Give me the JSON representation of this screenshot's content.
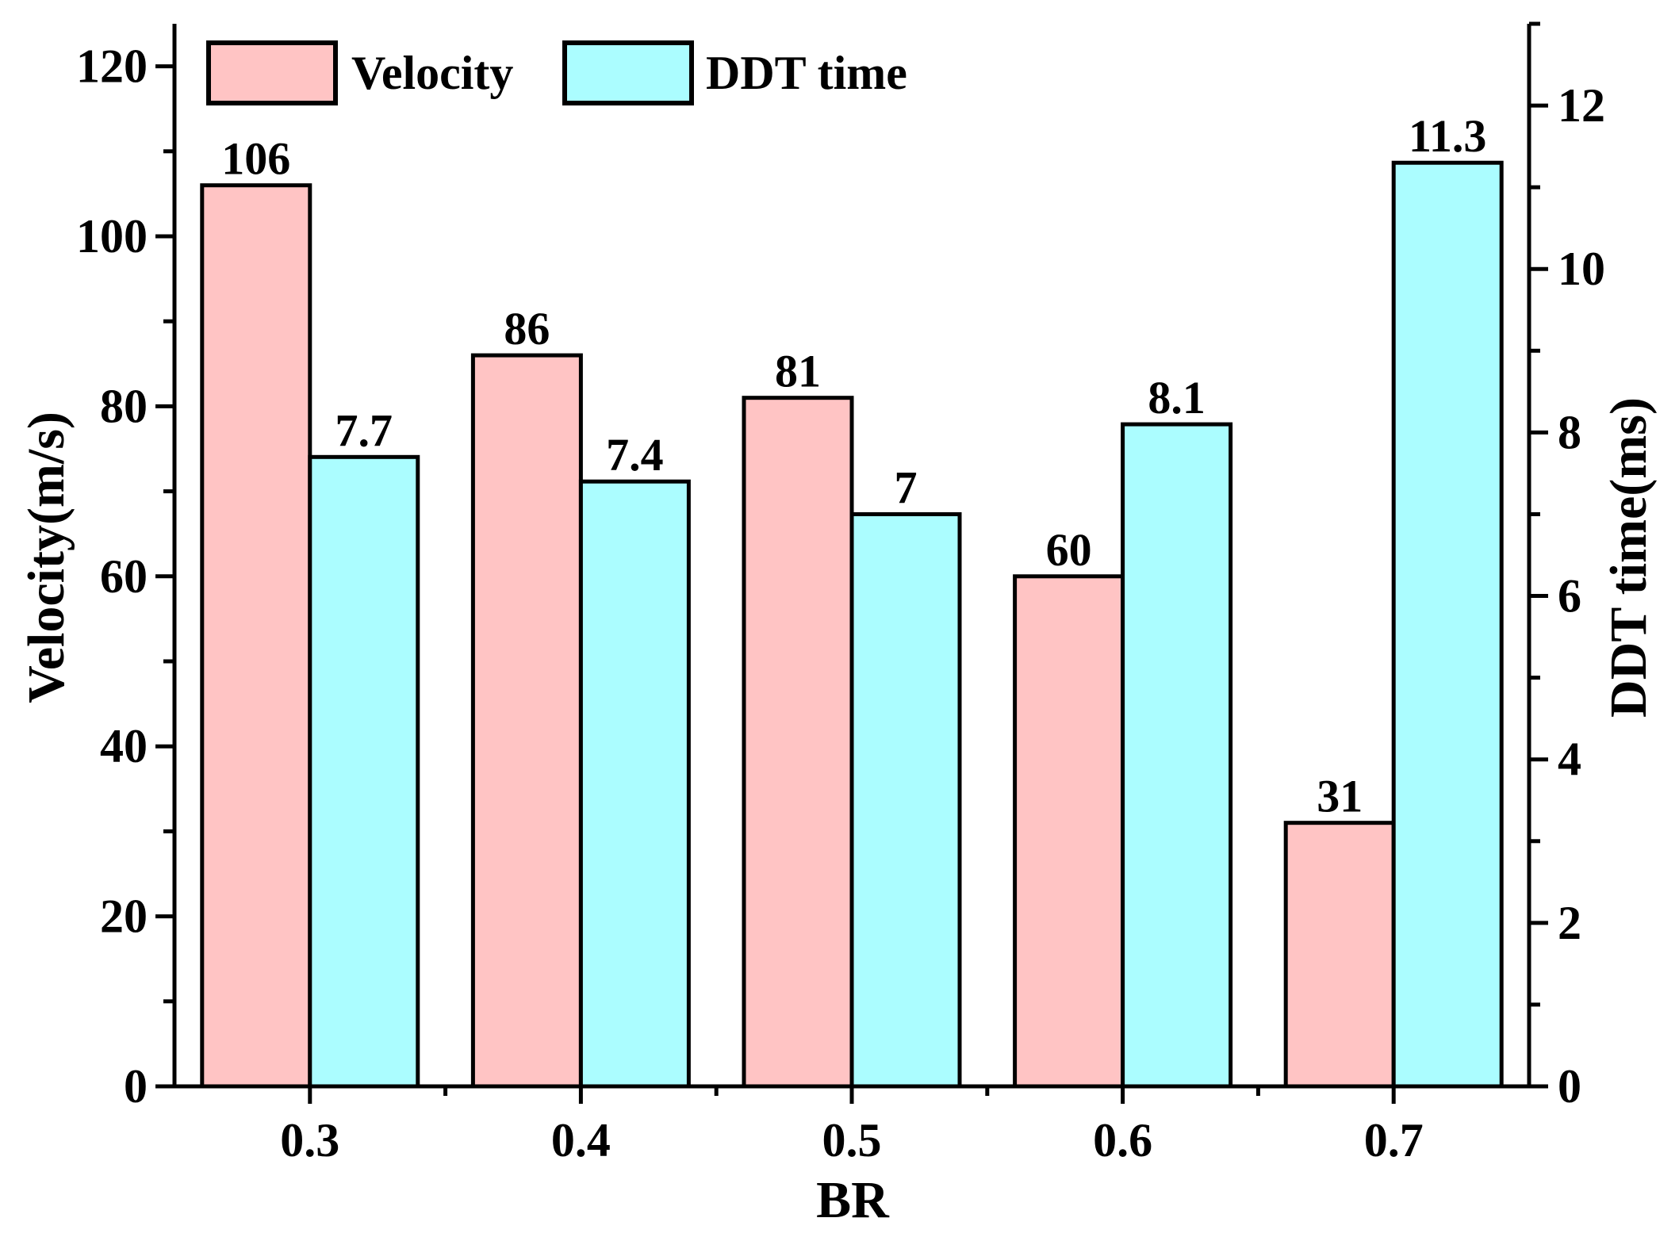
{
  "chart_data": {
    "type": "bar",
    "xlabel": "BR",
    "categories": [
      "0.3",
      "0.4",
      "0.5",
      "0.6",
      "0.7"
    ],
    "y_left": {
      "label": "Velocity(m/s)",
      "ylim": [
        0,
        125
      ],
      "ticks": [
        "0",
        "20",
        "40",
        "60",
        "80",
        "100",
        "120"
      ],
      "minor_step": 10
    },
    "y_right": {
      "label": "DDT time(ms)",
      "ylim": [
        0,
        13
      ],
      "ticks": [
        "0",
        "2",
        "4",
        "6",
        "8",
        "10",
        "12"
      ],
      "minor_step": 1
    },
    "series": [
      {
        "name": "Velocity",
        "axis": "left",
        "color": "#FFC4C4",
        "values": [
          106,
          86,
          81,
          60,
          31
        ],
        "labels": [
          "106",
          "86",
          "81",
          "60",
          "31"
        ]
      },
      {
        "name": "DDT time",
        "axis": "right",
        "color": "#ABFDFF",
        "values": [
          7.7,
          7.4,
          7,
          8.1,
          11.3
        ],
        "labels": [
          "7.7",
          "7.4",
          "7",
          "8.1",
          "11.3"
        ]
      }
    ],
    "legend": {
      "position": "top-left",
      "entries": [
        "Velocity",
        "DDT time"
      ]
    },
    "grid": false
  }
}
